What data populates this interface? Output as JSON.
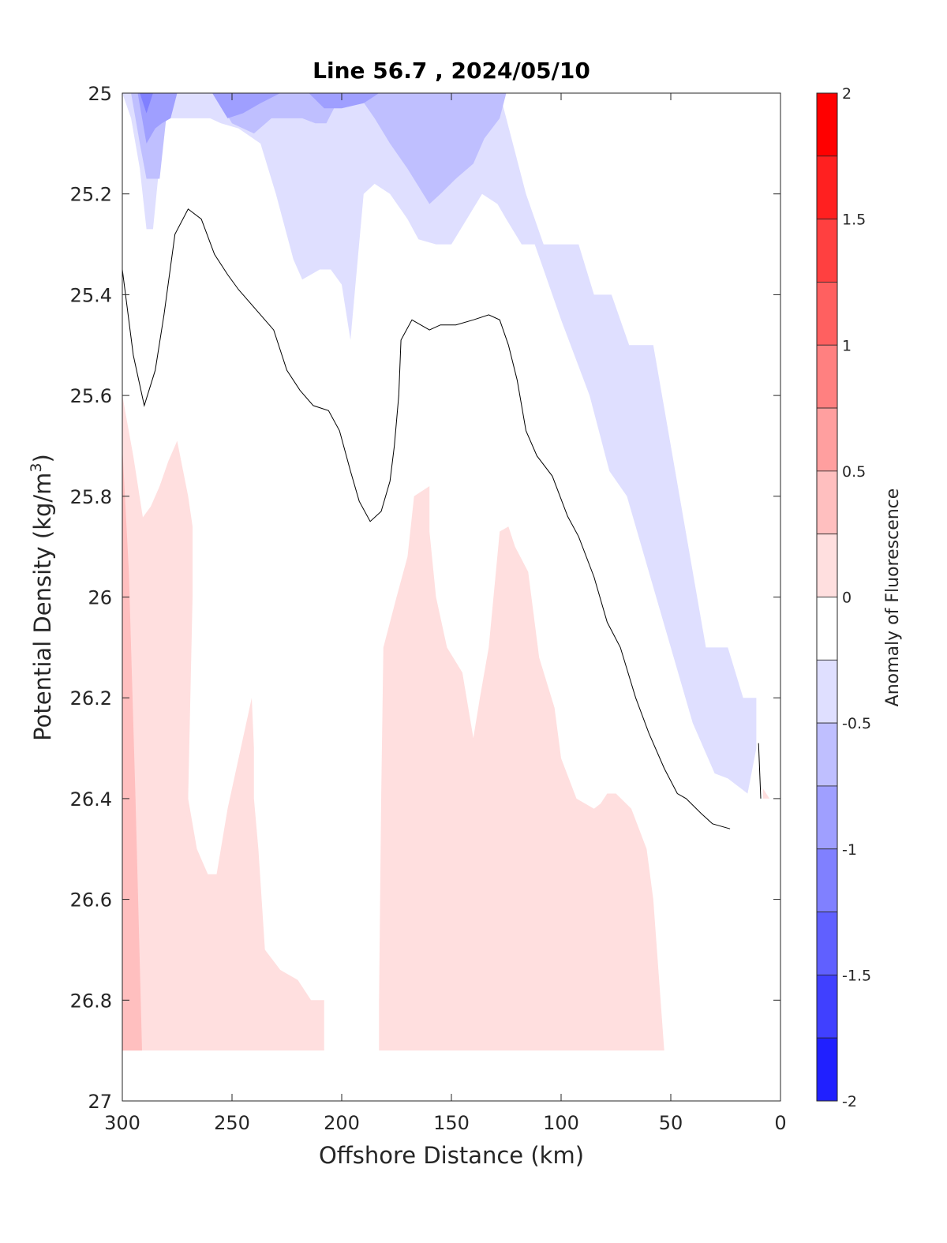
{
  "chart_data": {
    "type": "contour",
    "title": "Line 56.7 , 2024/05/10",
    "xlabel": "Offshore Distance (km)",
    "ylabel_main": "Potential Density (kg/m",
    "ylabel_sup": "3",
    "ylabel_close": ")",
    "xlim": [
      300,
      0
    ],
    "ylim": [
      25,
      27
    ],
    "x_reversed": true,
    "y_reversed": true,
    "x_ticks": [
      "300",
      "250",
      "200",
      "150",
      "100",
      "50",
      "0"
    ],
    "x_tick_values": [
      300,
      250,
      200,
      150,
      100,
      50,
      0
    ],
    "y_ticks": [
      "25",
      "25.2",
      "25.4",
      "25.6",
      "25.8",
      "26",
      "26.2",
      "26.4",
      "26.6",
      "26.8",
      "27"
    ],
    "y_tick_values": [
      25,
      25.2,
      25.4,
      25.6,
      25.8,
      26,
      26.2,
      26.4,
      26.6,
      26.8,
      27
    ],
    "colorbar": {
      "label": "Anomaly of Fluorescence",
      "range": [
        -2,
        2
      ],
      "ticks": [
        "2",
        "1.5",
        "1",
        "0.5",
        "0",
        "-0.5",
        "-1",
        "-1.5",
        "-2"
      ],
      "tick_values": [
        2,
        1.5,
        1,
        0.5,
        0,
        -0.5,
        -1,
        -1.5,
        -2
      ],
      "levels": [
        {
          "from": 1.75,
          "to": 2.0,
          "color": "#ff0000"
        },
        {
          "from": 1.5,
          "to": 1.75,
          "color": "#ff2020"
        },
        {
          "from": 1.25,
          "to": 1.5,
          "color": "#ff4040"
        },
        {
          "from": 1.0,
          "to": 1.25,
          "color": "#ff6060"
        },
        {
          "from": 0.75,
          "to": 1.0,
          "color": "#ff8080"
        },
        {
          "from": 0.5,
          "to": 0.75,
          "color": "#ff9f9f"
        },
        {
          "from": 0.25,
          "to": 0.5,
          "color": "#ffbfbf"
        },
        {
          "from": 0.0,
          "to": 0.25,
          "color": "#ffdfdf"
        },
        {
          "from": -0.25,
          "to": 0.0,
          "color": "#ffffff"
        },
        {
          "from": -0.5,
          "to": -0.25,
          "color": "#dfdfff"
        },
        {
          "from": -0.75,
          "to": -0.5,
          "color": "#bfbfff"
        },
        {
          "from": -1.0,
          "to": -0.75,
          "color": "#9f9fff"
        },
        {
          "from": -1.25,
          "to": -1.0,
          "color": "#8080ff"
        },
        {
          "from": -1.5,
          "to": -1.25,
          "color": "#6060ff"
        },
        {
          "from": -1.75,
          "to": -1.5,
          "color": "#4040ff"
        },
        {
          "from": -2.0,
          "to": -1.75,
          "color": "#2020ff"
        }
      ]
    },
    "regions": [
      {
        "name": "negative-0.25",
        "color": "#dfdfff",
        "points": [
          [
            300,
            25
          ],
          [
            128,
            25
          ],
          [
            116,
            25.2
          ],
          [
            108,
            25.3
          ],
          [
            92,
            25.3
          ],
          [
            85,
            25.4
          ],
          [
            77,
            25.4
          ],
          [
            69,
            25.5
          ],
          [
            58,
            25.5
          ],
          [
            34,
            26.1
          ],
          [
            24,
            26.1
          ],
          [
            17,
            26.2
          ],
          [
            11,
            26.2
          ],
          [
            11,
            26.3
          ],
          [
            15,
            26.39
          ],
          [
            24,
            26.36
          ],
          [
            30,
            26.35
          ],
          [
            35,
            26.3
          ],
          [
            40,
            26.25
          ],
          [
            50,
            26.1
          ],
          [
            60,
            25.95
          ],
          [
            70,
            25.8
          ],
          [
            78,
            25.75
          ],
          [
            87,
            25.6
          ],
          [
            100,
            25.45
          ],
          [
            108,
            25.35
          ],
          [
            112,
            25.3
          ],
          [
            118,
            25.3
          ],
          [
            125,
            25.25
          ],
          [
            129,
            25.22
          ],
          [
            136,
            25.2
          ],
          [
            143,
            25.25
          ],
          [
            150,
            25.3
          ],
          [
            157,
            25.3
          ],
          [
            165,
            25.29
          ],
          [
            170,
            25.25
          ],
          [
            178,
            25.2
          ],
          [
            185,
            25.18
          ],
          [
            190,
            25.2
          ],
          [
            196,
            25.49
          ],
          [
            200,
            25.38
          ],
          [
            205,
            25.35
          ],
          [
            210,
            25.35
          ],
          [
            218,
            25.37
          ],
          [
            222,
            25.33
          ],
          [
            230,
            25.2
          ],
          [
            237,
            25.1
          ],
          [
            247,
            25.07
          ],
          [
            255,
            25.06
          ],
          [
            260,
            25.05
          ],
          [
            268,
            25.05
          ],
          [
            276,
            25.05
          ],
          [
            281,
            25.05
          ],
          [
            286,
            25.27
          ],
          [
            289,
            25.27
          ],
          [
            292,
            25.15
          ],
          [
            296,
            25.05
          ],
          [
            300,
            25
          ]
        ]
      },
      {
        "name": "negative-0.5",
        "color": "#bfbfff",
        "points": [
          [
            296,
            25
          ],
          [
            292,
            25.1
          ],
          [
            289,
            25.17
          ],
          [
            286,
            25.17
          ],
          [
            283,
            25.17
          ],
          [
            280,
            25.05
          ],
          [
            277,
            25.0
          ],
          [
            258,
            25
          ],
          [
            250,
            25.06
          ],
          [
            240,
            25.08
          ],
          [
            232,
            25.05
          ],
          [
            223,
            25.05
          ],
          [
            218,
            25.05
          ],
          [
            212,
            25.06
          ],
          [
            207,
            25.06
          ],
          [
            200,
            25.0
          ],
          [
            193,
            25.0
          ],
          [
            185,
            25.05
          ],
          [
            178,
            25.1
          ],
          [
            170,
            25.15
          ],
          [
            160,
            25.22
          ],
          [
            155,
            25.2
          ],
          [
            148,
            25.17
          ],
          [
            140,
            25.14
          ],
          [
            135,
            25.09
          ],
          [
            128,
            25.05
          ],
          [
            125,
            25.0
          ]
        ]
      },
      {
        "name": "negative-0.75",
        "color": "#9f9fff",
        "points": [
          [
            293,
            25
          ],
          [
            289,
            25.1
          ],
          [
            285,
            25.07
          ],
          [
            282,
            25.06
          ],
          [
            278,
            25.05
          ],
          [
            275,
            25.0
          ],
          [
            259,
            25.0
          ],
          [
            252,
            25.05
          ],
          [
            245,
            25.04
          ],
          [
            237,
            25.02
          ],
          [
            228,
            25.0
          ],
          [
            215,
            25.0
          ],
          [
            208,
            25.03
          ],
          [
            200,
            25.03
          ],
          [
            190,
            25.02
          ],
          [
            183,
            25.0
          ],
          [
            170,
            25.0
          ]
        ]
      },
      {
        "name": "negative-1.0",
        "color": "#8080ff",
        "points": [
          [
            292,
            25
          ],
          [
            289,
            25.04
          ],
          [
            286,
            25.0
          ]
        ]
      },
      {
        "name": "positive-0.25",
        "color": "#ffdfdf",
        "points": [
          [
            300,
            25.6
          ],
          [
            296,
            25.7
          ],
          [
            292,
            25.85
          ],
          [
            287,
            25.82
          ],
          [
            283,
            25.78
          ],
          [
            279,
            25.73
          ],
          [
            275,
            25.69
          ],
          [
            270,
            25.8
          ],
          [
            268,
            25.86
          ],
          [
            268,
            26.0
          ],
          [
            270,
            26.4
          ],
          [
            272,
            26.5
          ],
          [
            274,
            26.52
          ],
          [
            277,
            26.52
          ],
          [
            280,
            26.42
          ],
          [
            285,
            26.2
          ],
          [
            288,
            26.17
          ],
          [
            290,
            26.5
          ],
          [
            292,
            26.6
          ],
          [
            295,
            26.73
          ],
          [
            300,
            26.9
          ]
        ]
      },
      {
        "name": "positive-0.5",
        "color": "#ffbfbf",
        "points": [
          [
            300,
            25.7
          ],
          [
            297,
            25.95
          ],
          [
            294,
            26.4
          ],
          [
            291,
            26.9
          ],
          [
            300,
            26.9
          ]
        ]
      }
    ],
    "positive_main": {
      "name": "positive-0.25",
      "color": "#ffdfdf",
      "points": [
        [
          300,
          25.6
        ],
        [
          295,
          25.72
        ],
        [
          290,
          25.86
        ],
        [
          285,
          25.84
        ],
        [
          280,
          25.75
        ],
        [
          275,
          25.74
        ],
        [
          272,
          25.78
        ],
        [
          270,
          25.84
        ],
        [
          270,
          25.98
        ],
        [
          270,
          26.4
        ],
        [
          266,
          26.5
        ],
        [
          261,
          26.55
        ],
        [
          257,
          26.55
        ],
        [
          252,
          26.42
        ],
        [
          245,
          26.28
        ],
        [
          241,
          26.2
        ],
        [
          240,
          26.3
        ],
        [
          240,
          26.4
        ],
        [
          238,
          26.5
        ],
        [
          235,
          26.7
        ],
        [
          228,
          26.74
        ],
        [
          220,
          26.76
        ],
        [
          214,
          26.8
        ],
        [
          208,
          26.8
        ],
        [
          208,
          26.9
        ],
        [
          300,
          26.9
        ]
      ]
    },
    "positive_mid": {
      "name": "positive-0.25",
      "color": "#ffdfdf",
      "points": [
        [
          183,
          26.9
        ],
        [
          183,
          26.8
        ],
        [
          182,
          26.4
        ],
        [
          181,
          26.1
        ],
        [
          175,
          26.0
        ],
        [
          170,
          25.92
        ],
        [
          167,
          25.8
        ],
        [
          160,
          25.78
        ],
        [
          160,
          25.87
        ],
        [
          157,
          26.0
        ],
        [
          152,
          26.1
        ],
        [
          145,
          26.15
        ],
        [
          140,
          26.28
        ],
        [
          137,
          26.2
        ],
        [
          133,
          26.1
        ],
        [
          128,
          25.87
        ],
        [
          124,
          25.86
        ],
        [
          121,
          25.9
        ],
        [
          115,
          25.95
        ],
        [
          110,
          26.12
        ],
        [
          103,
          26.22
        ],
        [
          100,
          26.32
        ],
        [
          93,
          26.4
        ],
        [
          85,
          26.42
        ],
        [
          82,
          26.41
        ],
        [
          79,
          26.39
        ],
        [
          75,
          26.39
        ],
        [
          68,
          26.42
        ],
        [
          61,
          26.5
        ],
        [
          58,
          26.6
        ],
        [
          53,
          26.9
        ]
      ]
    },
    "positive_small": {
      "name": "positive-0.25",
      "color": "#ffdfdf",
      "points": [
        [
          8,
          26.38
        ],
        [
          5,
          26.4
        ],
        [
          8,
          26.4
        ]
      ]
    },
    "contour_zero": [
      [
        300,
        25.35
      ],
      [
        295,
        25.52
      ],
      [
        290,
        25.62
      ],
      [
        285,
        25.55
      ],
      [
        281,
        25.44
      ],
      [
        276,
        25.28
      ],
      [
        270,
        25.23
      ],
      [
        264,
        25.25
      ],
      [
        258,
        25.32
      ],
      [
        252,
        25.36
      ],
      [
        247,
        25.39
      ],
      [
        243,
        25.41
      ],
      [
        239,
        25.43
      ],
      [
        231,
        25.47
      ],
      [
        225,
        25.55
      ],
      [
        219,
        25.59
      ],
      [
        213,
        25.62
      ],
      [
        206,
        25.63
      ],
      [
        201,
        25.67
      ],
      [
        196,
        25.75
      ],
      [
        192,
        25.81
      ],
      [
        187,
        25.85
      ],
      [
        182,
        25.83
      ],
      [
        178,
        25.77
      ],
      [
        176,
        25.7
      ],
      [
        174,
        25.6
      ],
      [
        173,
        25.49
      ],
      [
        168,
        25.45
      ],
      [
        160,
        25.47
      ],
      [
        155,
        25.46
      ],
      [
        148,
        25.46
      ],
      [
        140,
        25.45
      ],
      [
        133,
        25.44
      ],
      [
        128,
        25.45
      ],
      [
        124,
        25.5
      ],
      [
        120,
        25.57
      ],
      [
        116,
        25.67
      ],
      [
        111,
        25.72
      ],
      [
        104,
        25.76
      ],
      [
        97,
        25.84
      ],
      [
        92,
        25.88
      ],
      [
        85,
        25.96
      ],
      [
        79,
        26.05
      ],
      [
        73,
        26.1
      ],
      [
        66,
        26.2
      ],
      [
        60,
        26.27
      ],
      [
        53,
        26.34
      ],
      [
        47,
        26.39
      ],
      [
        43,
        26.4
      ],
      [
        36,
        26.43
      ],
      [
        31,
        26.45
      ],
      [
        23,
        26.46
      ]
    ],
    "contour_zero_small": [
      [
        10,
        26.29
      ],
      [
        9,
        26.4
      ]
    ]
  }
}
